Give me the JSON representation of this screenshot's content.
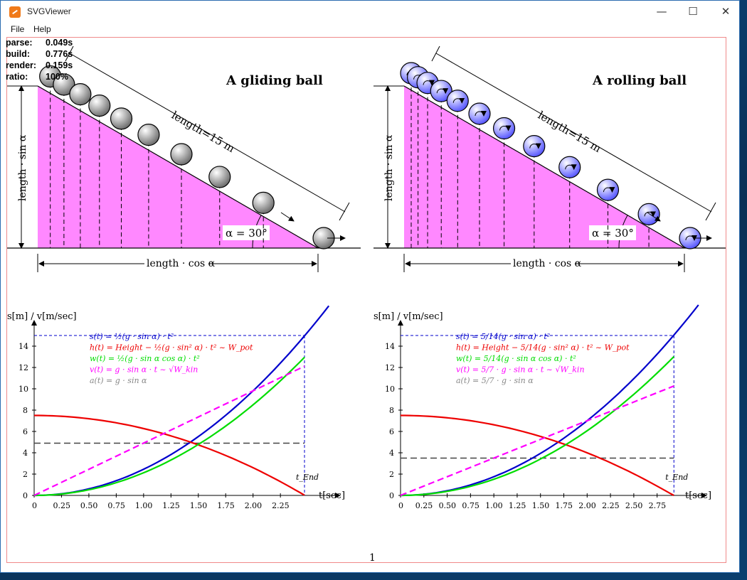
{
  "window": {
    "title": "SVGViewer",
    "minimize": "—",
    "maximize": "☐",
    "close": "✕"
  },
  "menu": [
    "File",
    "Help"
  ],
  "stats": [
    {
      "label": "parse:",
      "value": "0.049s"
    },
    {
      "label": "build:",
      "value": "0.776s"
    },
    {
      "label": "render:",
      "value": "0.159s"
    },
    {
      "label": "ratio:",
      "value": "100%"
    }
  ],
  "page_number": "1",
  "colors": {
    "ramp": "#ff88ff",
    "ball_glide": "#bdbdbd",
    "ball_roll": "#8f8fff",
    "s": "#0000cc",
    "h": "#ee0000",
    "w": "#00dd00",
    "v": "#ff00ff",
    "a": "#888888",
    "end": "#0000cc"
  },
  "panels": [
    {
      "id": "glide",
      "title": "A gliding ball",
      "length_label": "length=15 m",
      "height_label": "length · sin α",
      "base_label": "length · cos α",
      "angle_label": "α = 30°",
      "ball_kind": "glide",
      "y_axis_label": "s[m] / v[m/sec]",
      "x_axis_label": "t[sec]",
      "t_end_label": "t_End",
      "formulas": [
        {
          "text": "s(t) = ½(g · sin α) · t²",
          "color": "s"
        },
        {
          "text": "h(t) = Height − ½(g · sin² α) · t² ~ W_pot",
          "color": "h"
        },
        {
          "text": "w(t) = ½(g · sin α cos α) · t²",
          "color": "w"
        },
        {
          "text": "v(t) = g · sin α · t ~ √W_kin",
          "color": "v"
        },
        {
          "text": "a(t) = g · sin α",
          "color": "a"
        }
      ],
      "xticks": [
        "0",
        "0.25",
        "0.50",
        "0.75",
        "1.00",
        "1.25",
        "1.50",
        "1.75",
        "2.00",
        "2.25"
      ],
      "yticks": [
        "0",
        "2",
        "4",
        "6",
        "8",
        "10",
        "12",
        "14"
      ],
      "chart_data": {
        "type": "line",
        "xlim": [
          0,
          2.6
        ],
        "ylim": [
          0,
          16
        ],
        "t_end": 2.47,
        "s_end": 15,
        "dashed_level": 4.9,
        "series": [
          {
            "key": "s",
            "style": "solid",
            "coef": 2.4525,
            "kind": "quad"
          },
          {
            "key": "h",
            "style": "solid",
            "start": 7.5,
            "coef": 1.22625,
            "kind": "quad_down"
          },
          {
            "key": "w",
            "style": "solid",
            "coef": 2.124,
            "kind": "quad"
          },
          {
            "key": "v",
            "style": "dashed",
            "coef": 4.905,
            "kind": "lin"
          }
        ]
      }
    },
    {
      "id": "roll",
      "title": "A rolling ball",
      "length_label": "length=15 m",
      "height_label": "length · sin α",
      "base_label": "length · cos α",
      "angle_label": "α = 30°",
      "ball_kind": "roll",
      "y_axis_label": "s[m] / v[m/sec]",
      "x_axis_label": "t[sec]",
      "t_end_label": "t_End",
      "formulas": [
        {
          "text": "s(t) = 5/14(g · sin α) · t²",
          "color": "s"
        },
        {
          "text": "h(t) = Height − 5/14(g · sin² α) · t² ~ W_pot",
          "color": "h"
        },
        {
          "text": "w(t) = 5/14(g · sin α cos α) · t²",
          "color": "w"
        },
        {
          "text": "v(t) = 5/7 · g · sin α · t ~ √W_kin",
          "color": "v"
        },
        {
          "text": "a(t) = 5/7 · g · sin α",
          "color": "a"
        }
      ],
      "xticks": [
        "0",
        "0.25",
        "0.50",
        "0.75",
        "1.00",
        "1.25",
        "1.50",
        "1.75",
        "2.00",
        "2.25",
        "2.50",
        "2.75"
      ],
      "yticks": [
        "0",
        "2",
        "4",
        "6",
        "8",
        "10",
        "12",
        "14"
      ],
      "chart_data": {
        "type": "line",
        "xlim": [
          0,
          3.05
        ],
        "ylim": [
          0,
          16
        ],
        "t_end": 2.93,
        "s_end": 15,
        "dashed_level": 3.5,
        "series": [
          {
            "key": "s",
            "style": "solid",
            "coef": 1.75179,
            "kind": "quad"
          },
          {
            "key": "h",
            "style": "solid",
            "start": 7.5,
            "coef": 0.87589,
            "kind": "quad_down"
          },
          {
            "key": "w",
            "style": "solid",
            "coef": 1.51709,
            "kind": "quad"
          },
          {
            "key": "v",
            "style": "dashed",
            "coef": 3.50357,
            "kind": "lin"
          }
        ]
      }
    }
  ]
}
